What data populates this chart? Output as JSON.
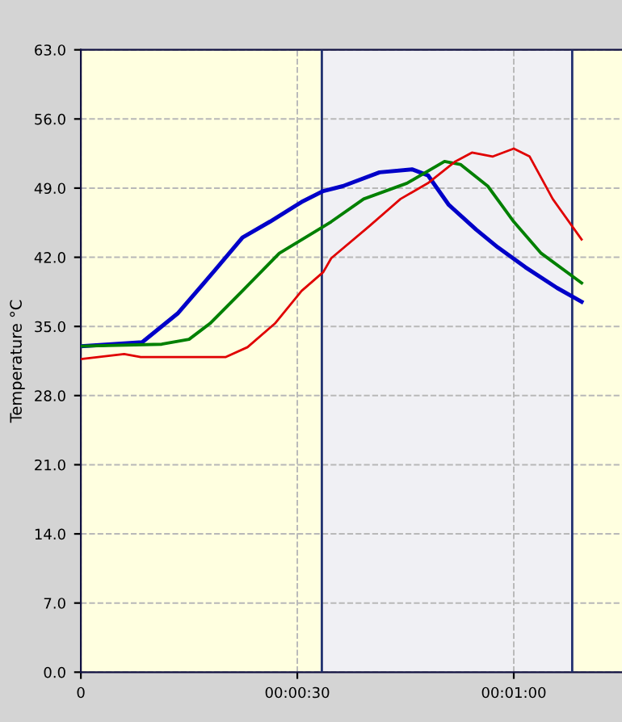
{
  "chart_data": {
    "type": "line",
    "ylabel": "Temperature °C",
    "xlim": [
      0,
      75
    ],
    "xticks": [
      {
        "value": 0,
        "label": "0"
      },
      {
        "value": 30,
        "label": "00:00:30"
      },
      {
        "value": 60,
        "label": "00:01:00"
      }
    ],
    "ylim": [
      0,
      63
    ],
    "yticks": [
      {
        "value": 0,
        "label": "0.0"
      },
      {
        "value": 7,
        "label": "7.0"
      },
      {
        "value": 14,
        "label": "14.0"
      },
      {
        "value": 21,
        "label": "21.0"
      },
      {
        "value": 28,
        "label": "28.0"
      },
      {
        "value": 35,
        "label": "35.0"
      },
      {
        "value": 42,
        "label": "42.0"
      },
      {
        "value": 49,
        "label": "49.0"
      },
      {
        "value": 56,
        "label": "56.0"
      },
      {
        "value": 63,
        "label": "63.0"
      }
    ],
    "grid": true,
    "legend": false,
    "marker": "none",
    "line_style": "solid",
    "bands": [
      {
        "axis": "x",
        "from": 33.4,
        "to": 68.1,
        "color": "#f0f0f4"
      }
    ],
    "ref_lines": [
      {
        "axis": "x",
        "value": 33.4,
        "color": "#203070",
        "line_style": "solid"
      },
      {
        "axis": "x",
        "value": 68.1,
        "color": "#203070",
        "line_style": "solid"
      }
    ],
    "series": [
      {
        "color": "#0000c8",
        "x": [
          0,
          8.5,
          13.4,
          18.6,
          22.4,
          26.2,
          30.6,
          33.6,
          36.3,
          41.4,
          45.9,
          48.1,
          51.0,
          54.8,
          57.8,
          61.6,
          66.0,
          69.4
        ],
        "values": [
          33.0,
          33.4,
          36.3,
          40.7,
          44.0,
          45.6,
          47.6,
          48.7,
          49.2,
          50.6,
          50.9,
          50.3,
          47.3,
          44.8,
          43.0,
          41.0,
          38.9,
          37.5
        ]
      },
      {
        "color": "#008000",
        "x": [
          0,
          11.2,
          15,
          17.9,
          22.4,
          27.5,
          33.6,
          34.7,
          39.2,
          45.2,
          50.4,
          52.6,
          56.4,
          60,
          63.8,
          69.4
        ],
        "values": [
          33.0,
          33.2,
          33.7,
          35.3,
          38.6,
          42.4,
          45.1,
          45.6,
          47.9,
          49.5,
          51.7,
          51.4,
          49.2,
          45.6,
          42.4,
          39.4
        ]
      },
      {
        "color": "#e00000",
        "x": [
          0,
          6,
          8.3,
          20.1,
          23.1,
          26.9,
          30.6,
          33.6,
          34.7,
          39.9,
          44.3,
          48.1,
          51.9,
          54.2,
          57.1,
          60,
          62.2,
          65.4,
          69.4
        ],
        "values": [
          31.7,
          32.2,
          31.9,
          31.9,
          32.9,
          35.3,
          38.6,
          40.5,
          41.9,
          45.1,
          47.9,
          49.5,
          51.7,
          52.6,
          52.2,
          53.0,
          52.2,
          47.9,
          43.8
        ]
      }
    ]
  }
}
